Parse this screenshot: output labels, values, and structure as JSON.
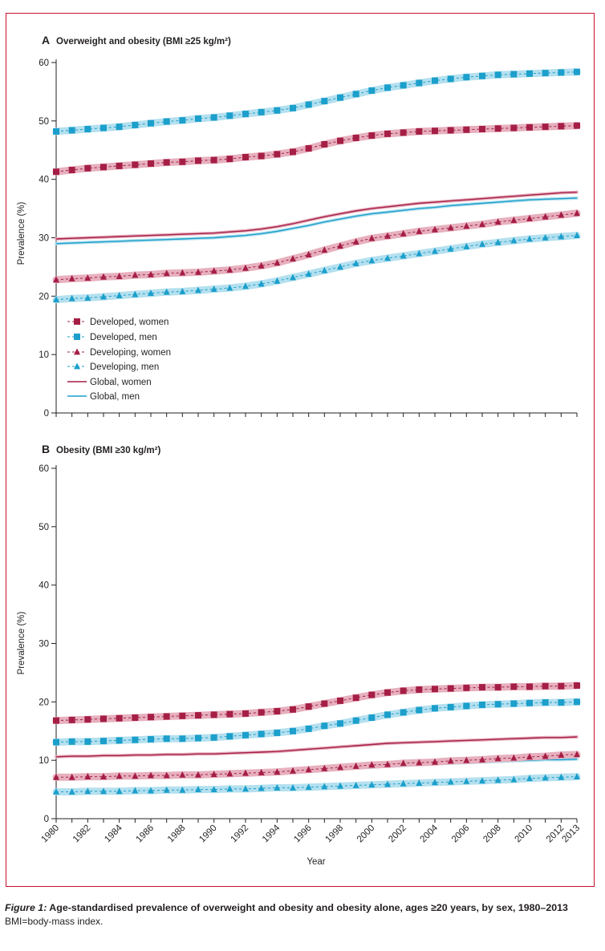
{
  "caption": {
    "label": "Figure 1:",
    "text": " Age-standardised prevalence of overweight and obesity and obesity alone, ages ≥20 years, by sex, 1980–2013",
    "note": "BMI=body-mass index."
  },
  "colors": {
    "women": "#a51f45",
    "women_band": "#e7b0bf",
    "men": "#1c9fcb",
    "men_band": "#b4e0ef",
    "frame": "#c8102e"
  },
  "chart_data": [
    {
      "type": "line",
      "panel_letter": "A",
      "title": "Overweight and obesity (BMI ≥25 kg/m²)",
      "xlabel": "",
      "ylabel": "Prevalence (%)",
      "ylim": [
        0,
        60
      ],
      "yticks": [
        0,
        10,
        20,
        30,
        40,
        50,
        60
      ],
      "xlim": [
        1980,
        2013
      ],
      "x": [
        1980,
        1981,
        1982,
        1983,
        1984,
        1985,
        1986,
        1987,
        1988,
        1989,
        1990,
        1991,
        1992,
        1993,
        1994,
        1995,
        1996,
        1997,
        1998,
        1999,
        2000,
        2001,
        2002,
        2003,
        2004,
        2005,
        2006,
        2007,
        2008,
        2009,
        2010,
        2011,
        2012,
        2013
      ],
      "xticks": [
        1980,
        1982,
        1984,
        1986,
        1988,
        1990,
        1992,
        1994,
        1996,
        1998,
        2000,
        2002,
        2004,
        2006,
        2008,
        2010,
        2012,
        2013
      ],
      "legend_position": "bottom-left",
      "series": [
        {
          "name": "Developed, women",
          "marker": "square",
          "group": "women",
          "style": "dashed",
          "values": [
            41.3,
            41.6,
            41.9,
            42.1,
            42.3,
            42.5,
            42.7,
            42.9,
            43.0,
            43.2,
            43.3,
            43.5,
            43.8,
            44.0,
            44.3,
            44.7,
            45.3,
            46.0,
            46.6,
            47.1,
            47.5,
            47.8,
            48.0,
            48.2,
            48.3,
            48.4,
            48.5,
            48.6,
            48.7,
            48.8,
            48.9,
            49.0,
            49.1,
            49.2
          ]
        },
        {
          "name": "Developed, men",
          "marker": "square",
          "group": "men",
          "style": "dashed",
          "values": [
            48.2,
            48.4,
            48.6,
            48.8,
            49.0,
            49.3,
            49.6,
            49.9,
            50.1,
            50.4,
            50.6,
            50.9,
            51.2,
            51.5,
            51.8,
            52.2,
            52.8,
            53.4,
            54.0,
            54.6,
            55.2,
            55.7,
            56.1,
            56.5,
            56.9,
            57.2,
            57.5,
            57.7,
            57.9,
            58.0,
            58.1,
            58.2,
            58.3,
            58.4
          ]
        },
        {
          "name": "Developing, women",
          "marker": "triangle",
          "group": "women",
          "style": "dashed",
          "values": [
            22.8,
            23.0,
            23.1,
            23.3,
            23.4,
            23.6,
            23.7,
            23.9,
            24.0,
            24.1,
            24.3,
            24.5,
            24.8,
            25.2,
            25.7,
            26.4,
            27.1,
            27.9,
            28.6,
            29.3,
            29.9,
            30.3,
            30.7,
            31.1,
            31.4,
            31.7,
            32.0,
            32.3,
            32.7,
            33.0,
            33.3,
            33.6,
            33.9,
            34.2
          ]
        },
        {
          "name": "Developing, men",
          "marker": "triangle",
          "group": "men",
          "style": "dashed",
          "values": [
            19.4,
            19.6,
            19.7,
            19.9,
            20.1,
            20.3,
            20.5,
            20.7,
            20.8,
            21.0,
            21.2,
            21.4,
            21.7,
            22.1,
            22.6,
            23.2,
            23.8,
            24.4,
            25.0,
            25.6,
            26.1,
            26.5,
            26.9,
            27.3,
            27.7,
            28.1,
            28.5,
            28.9,
            29.2,
            29.5,
            29.8,
            30.0,
            30.2,
            30.4
          ]
        },
        {
          "name": "Global, women",
          "marker": "none",
          "group": "women",
          "style": "solid",
          "values": [
            29.8,
            29.9,
            30.0,
            30.1,
            30.2,
            30.3,
            30.4,
            30.5,
            30.6,
            30.7,
            30.8,
            31.0,
            31.2,
            31.5,
            31.9,
            32.4,
            33.0,
            33.6,
            34.1,
            34.6,
            35.0,
            35.3,
            35.6,
            35.9,
            36.1,
            36.3,
            36.5,
            36.7,
            36.9,
            37.1,
            37.3,
            37.5,
            37.7,
            37.8
          ]
        },
        {
          "name": "Global, men",
          "marker": "none",
          "group": "men",
          "style": "solid",
          "values": [
            29.0,
            29.1,
            29.2,
            29.3,
            29.4,
            29.5,
            29.6,
            29.7,
            29.8,
            29.9,
            30.0,
            30.2,
            30.4,
            30.7,
            31.1,
            31.6,
            32.1,
            32.7,
            33.2,
            33.7,
            34.1,
            34.4,
            34.7,
            35.0,
            35.2,
            35.5,
            35.7,
            35.9,
            36.1,
            36.3,
            36.5,
            36.6,
            36.7,
            36.8
          ]
        }
      ]
    },
    {
      "type": "line",
      "panel_letter": "B",
      "title": "Obesity (BMI ≥30 kg/m²)",
      "xlabel": "Year",
      "ylabel": "Prevalence (%)",
      "ylim": [
        0,
        60
      ],
      "yticks": [
        0,
        10,
        20,
        30,
        40,
        50,
        60
      ],
      "xlim": [
        1980,
        2013
      ],
      "x": [
        1980,
        1981,
        1982,
        1983,
        1984,
        1985,
        1986,
        1987,
        1988,
        1989,
        1990,
        1991,
        1992,
        1993,
        1994,
        1995,
        1996,
        1997,
        1998,
        1999,
        2000,
        2001,
        2002,
        2003,
        2004,
        2005,
        2006,
        2007,
        2008,
        2009,
        2010,
        2011,
        2012,
        2013
      ],
      "xticks": [
        1980,
        1982,
        1984,
        1986,
        1988,
        1990,
        1992,
        1994,
        1996,
        1998,
        2000,
        2002,
        2004,
        2006,
        2008,
        2010,
        2012,
        2013
      ],
      "xtick_labels": [
        "1980",
        "1982",
        "1984",
        "1986",
        "1988",
        "1990",
        "1992",
        "1994",
        "1996",
        "1998",
        "2000",
        "2002",
        "2004",
        "2006",
        "2008",
        "2010",
        "2012",
        "2013"
      ],
      "series": [
        {
          "name": "Developed, women",
          "marker": "square",
          "group": "women",
          "style": "dashed",
          "values": [
            16.8,
            16.9,
            17.0,
            17.1,
            17.2,
            17.3,
            17.4,
            17.5,
            17.6,
            17.7,
            17.8,
            17.9,
            18.0,
            18.2,
            18.4,
            18.7,
            19.2,
            19.7,
            20.2,
            20.7,
            21.2,
            21.6,
            21.9,
            22.1,
            22.2,
            22.3,
            22.4,
            22.5,
            22.5,
            22.6,
            22.6,
            22.7,
            22.7,
            22.8
          ]
        },
        {
          "name": "Developed, men",
          "marker": "square",
          "group": "men",
          "style": "dashed",
          "values": [
            13.1,
            13.2,
            13.2,
            13.3,
            13.4,
            13.5,
            13.6,
            13.7,
            13.7,
            13.8,
            13.9,
            14.1,
            14.3,
            14.5,
            14.7,
            15.0,
            15.4,
            15.9,
            16.3,
            16.8,
            17.3,
            17.8,
            18.2,
            18.6,
            18.9,
            19.1,
            19.3,
            19.5,
            19.6,
            19.7,
            19.8,
            19.9,
            19.9,
            20.0
          ]
        },
        {
          "name": "Developing, women",
          "marker": "triangle",
          "group": "women",
          "style": "dashed",
          "values": [
            7.1,
            7.1,
            7.2,
            7.2,
            7.3,
            7.3,
            7.4,
            7.4,
            7.5,
            7.5,
            7.6,
            7.7,
            7.8,
            7.9,
            8.0,
            8.2,
            8.4,
            8.6,
            8.8,
            9.0,
            9.2,
            9.3,
            9.5,
            9.6,
            9.7,
            9.9,
            10.0,
            10.1,
            10.3,
            10.4,
            10.6,
            10.7,
            10.9,
            11.0
          ]
        },
        {
          "name": "Developing, men",
          "marker": "triangle",
          "group": "men",
          "style": "dashed",
          "values": [
            4.6,
            4.6,
            4.7,
            4.7,
            4.7,
            4.8,
            4.8,
            4.9,
            4.9,
            5.0,
            5.0,
            5.1,
            5.1,
            5.2,
            5.3,
            5.3,
            5.4,
            5.5,
            5.6,
            5.7,
            5.8,
            5.9,
            6.0,
            6.1,
            6.2,
            6.3,
            6.4,
            6.5,
            6.6,
            6.7,
            6.9,
            7.0,
            7.1,
            7.2
          ]
        },
        {
          "name": "Global, women",
          "marker": "none",
          "group": "women",
          "style": "solid",
          "values": [
            10.6,
            10.7,
            10.7,
            10.8,
            10.8,
            10.9,
            10.9,
            11.0,
            11.0,
            11.1,
            11.1,
            11.2,
            11.3,
            11.4,
            11.5,
            11.7,
            11.9,
            12.1,
            12.3,
            12.5,
            12.7,
            12.9,
            13.0,
            13.1,
            13.2,
            13.3,
            13.4,
            13.5,
            13.6,
            13.7,
            13.8,
            13.9,
            13.9,
            14.0
          ]
        },
        {
          "name": "Global, men",
          "marker": "none",
          "group": "men",
          "style": "solid",
          "values": [
            7.3,
            7.3,
            7.4,
            7.4,
            7.4,
            7.5,
            7.5,
            7.6,
            7.6,
            7.7,
            7.7,
            7.8,
            7.9,
            8.0,
            8.1,
            8.2,
            8.3,
            8.4,
            8.5,
            8.7,
            8.8,
            9.0,
            9.1,
            9.3,
            9.4,
            9.5,
            9.6,
            9.7,
            9.8,
            9.9,
            10.0,
            10.1,
            10.1,
            10.2
          ]
        }
      ]
    }
  ]
}
